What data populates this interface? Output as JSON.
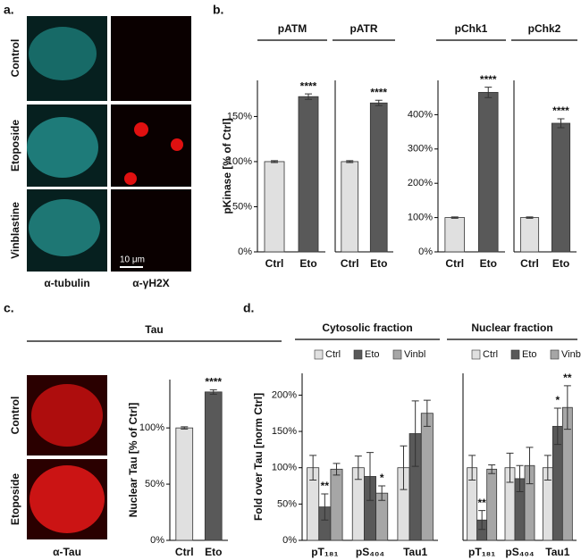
{
  "panel_labels": [
    "a.",
    "b.",
    "c.",
    "d."
  ],
  "images": {
    "a": {
      "rows": [
        "Control",
        "Etoposide",
        "Vinblastine"
      ],
      "columns": [
        "α-tubulin",
        "α-γH2X"
      ],
      "scale_bar": "10 μm"
    },
    "c": {
      "rows": [
        "Control",
        "Etoposide"
      ],
      "columns": [
        "α-Tau"
      ]
    }
  },
  "chart_data": [
    {
      "type": "bar",
      "title": "pATM",
      "y_label": "pKinase [% of Ctrl]",
      "categories": [
        "Ctrl",
        "Eto"
      ],
      "values": [
        100,
        172
      ],
      "errors": [
        1,
        3
      ],
      "colors": [
        "#e0e0e0",
        "#595959"
      ],
      "significance": [
        null,
        "****"
      ],
      "ylim": [
        0,
        190
      ],
      "yticks": [
        {
          "value": 0,
          "label": "0%"
        },
        {
          "value": 50,
          "label": "50%"
        },
        {
          "value": 100,
          "label": "100%"
        },
        {
          "value": 150,
          "label": "150%"
        }
      ]
    },
    {
      "type": "bar",
      "title": "pATR",
      "categories": [
        "Ctrl",
        "Eto"
      ],
      "values": [
        100,
        165
      ],
      "errors": [
        1,
        3
      ],
      "colors": [
        "#e0e0e0",
        "#595959"
      ],
      "significance": [
        null,
        "****"
      ],
      "ylim": [
        0,
        190
      ]
    },
    {
      "type": "bar",
      "title": "pChk1",
      "categories": [
        "Ctrl",
        "Eto"
      ],
      "values": [
        100,
        465
      ],
      "errors": [
        2,
        15
      ],
      "colors": [
        "#e0e0e0",
        "#595959"
      ],
      "significance": [
        null,
        "****"
      ],
      "ylim": [
        0,
        500
      ],
      "yticks": [
        {
          "value": 0,
          "label": "0%"
        },
        {
          "value": 100,
          "label": "100%"
        },
        {
          "value": 200,
          "label": "200%"
        },
        {
          "value": 300,
          "label": "300%"
        },
        {
          "value": 400,
          "label": "400%"
        }
      ]
    },
    {
      "type": "bar",
      "title": "pChk2",
      "categories": [
        "Ctrl",
        "Eto"
      ],
      "values": [
        100,
        375
      ],
      "errors": [
        2,
        13
      ],
      "colors": [
        "#e0e0e0",
        "#595959"
      ],
      "significance": [
        null,
        "****"
      ],
      "ylim": [
        0,
        500
      ]
    },
    {
      "type": "bar",
      "title": "Tau",
      "y_label": "Nuclear Tau [% of Ctrl]",
      "categories": [
        "Ctrl",
        "Eto"
      ],
      "values": [
        100,
        132
      ],
      "errors": [
        1,
        2
      ],
      "colors": [
        "#e0e0e0",
        "#595959"
      ],
      "significance": [
        null,
        "****"
      ],
      "ylim": [
        0,
        143
      ],
      "yticks": [
        {
          "value": 0,
          "label": "0%"
        },
        {
          "value": 50,
          "label": "50%"
        },
        {
          "value": 100,
          "label": "100%"
        }
      ]
    },
    {
      "type": "bar",
      "title": "Cytosolic fraction",
      "y_label": "Fold over Tau [norm Ctrl]",
      "categories": [
        "pT₁₈₁",
        "pS₄₀₄",
        "Tau1"
      ],
      "series": [
        {
          "name": "Ctrl",
          "color": "#e0e0e0",
          "values": [
            100,
            100,
            100
          ],
          "errors": [
            17,
            16,
            30
          ],
          "significance": [
            null,
            null,
            null
          ]
        },
        {
          "name": "Eto",
          "color": "#595959",
          "values": [
            46,
            88,
            147
          ],
          "errors": [
            18,
            33,
            45
          ],
          "significance": [
            "**",
            null,
            null
          ]
        },
        {
          "name": "Vinbl",
          "color": "#a6a6a6",
          "values": [
            98,
            65,
            175
          ],
          "errors": [
            8,
            10,
            18
          ],
          "significance": [
            null,
            "*",
            null
          ]
        }
      ],
      "ylim": [
        0,
        230
      ],
      "yticks": [
        {
          "value": 0,
          "label": "0%"
        },
        {
          "value": 50,
          "label": "50%"
        },
        {
          "value": 100,
          "label": "100%"
        },
        {
          "value": 150,
          "label": "150%"
        },
        {
          "value": 200,
          "label": "200%"
        }
      ]
    },
    {
      "type": "bar",
      "title": "Nuclear fraction",
      "categories": [
        "pT₁₈₁",
        "pS₄₀₄",
        "Tau1"
      ],
      "series": [
        {
          "name": "Ctrl",
          "color": "#e0e0e0",
          "values": [
            100,
            100,
            100
          ],
          "errors": [
            17,
            20,
            17
          ],
          "significance": [
            null,
            null,
            null
          ]
        },
        {
          "name": "Eto",
          "color": "#595959",
          "values": [
            28,
            85,
            157
          ],
          "errors": [
            13,
            18,
            25
          ],
          "significance": [
            "**",
            null,
            "*"
          ]
        },
        {
          "name": "Vinbl",
          "color": "#a6a6a6",
          "values": [
            98,
            103,
            183
          ],
          "errors": [
            6,
            25,
            30
          ],
          "significance": [
            null,
            null,
            "**"
          ]
        }
      ],
      "ylim": [
        0,
        230
      ]
    }
  ]
}
